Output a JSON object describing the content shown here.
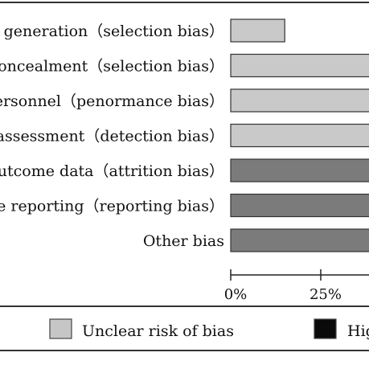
{
  "chart_data": {
    "type": "bar",
    "orientation": "horizontal",
    "stacked": true,
    "categories": [
      "ce generation（selection bias）",
      "concealment（selection bias）",
      "personnel（penormance bias）",
      "e assessment（detection bias）",
      "outcome data（attrition bias）",
      "ive reporting（reporting bias）",
      "Other bias"
    ],
    "series": [
      {
        "key": "low",
        "values": [
          0,
          0,
          0,
          0,
          0,
          0,
          0
        ]
      },
      {
        "key": "high",
        "values": [
          0,
          0,
          0,
          0,
          0,
          0,
          0
        ]
      },
      {
        "key": "unclear",
        "values": [
          15,
          100,
          100,
          100,
          0,
          0,
          0
        ]
      },
      {
        "key": "dark",
        "values": [
          0,
          0,
          0,
          0,
          100,
          100,
          100
        ]
      }
    ],
    "stack_order_left_to_right": [
      "dark",
      "unclear",
      "high",
      "low"
    ],
    "xticks": [
      "0%",
      "25%"
    ],
    "xtick_values": [
      0,
      25
    ],
    "xlim": [
      0,
      100
    ],
    "legend": [
      {
        "label": "Unclear risk of bias",
        "color": "#c6c6c6"
      },
      {
        "label": "Hig",
        "color": "#0a0a0a"
      }
    ],
    "legend_position": "bottom",
    "colors": {
      "dark": "#7b7b7b",
      "unclear": "#c9c9c9",
      "high": "#0a0a0a",
      "low": "#ffffff"
    }
  }
}
